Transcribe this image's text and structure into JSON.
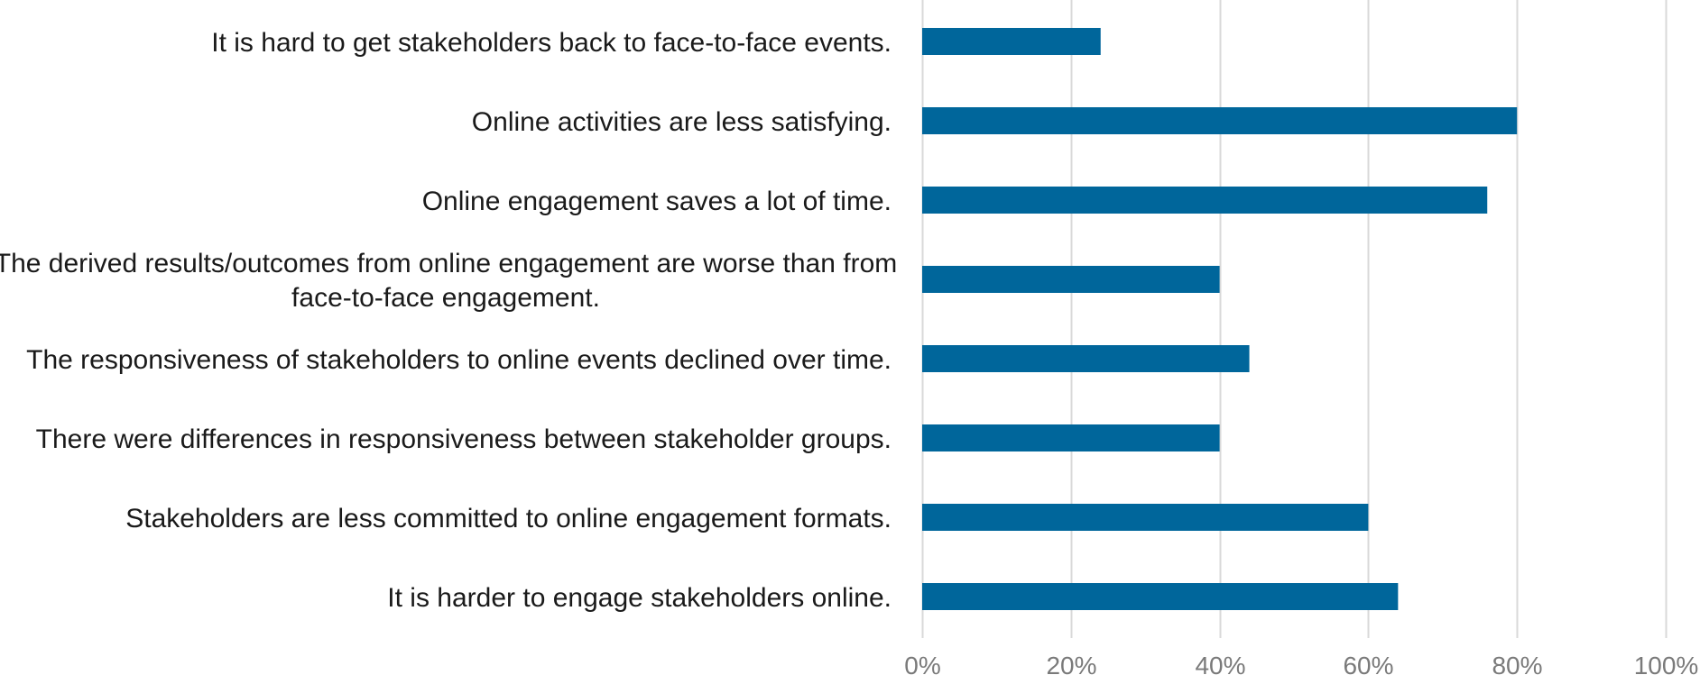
{
  "chart_data": {
    "type": "bar",
    "orientation": "horizontal",
    "categories": [
      "It is hard to get stakeholders back to face-to-face events.",
      "Online activities are less satisfying.",
      "Online engagement saves a lot of time.",
      "The derived results/outcomes from online engagement are worse than from face-to-face engagement.",
      "The responsiveness of stakeholders to online events declined over time.",
      "There were differences in responsiveness between stakeholder groups.",
      "Stakeholders are less committed to online engagement formats.",
      "It is harder to engage stakeholders online."
    ],
    "category_lines": [
      [
        "It is hard to get stakeholders back to face-to-face events."
      ],
      [
        "Online activities are less satisfying."
      ],
      [
        "Online engagement saves a lot of time."
      ],
      [
        "The derived results/outcomes from online engagement are worse than from",
        "face-to-face engagement."
      ],
      [
        "The responsiveness of stakeholders to online events declined over time."
      ],
      [
        "There were differences in responsiveness between stakeholder groups."
      ],
      [
        "Stakeholders are less committed to online engagement formats."
      ],
      [
        "It is harder to engage stakeholders online."
      ]
    ],
    "values": [
      24,
      80,
      76,
      40,
      44,
      40,
      60,
      64
    ],
    "unit": "%",
    "xlim": [
      0,
      100
    ],
    "x_ticks": [
      0,
      20,
      40,
      60,
      80,
      100
    ],
    "x_tick_labels": [
      "0%",
      "20%",
      "40%",
      "60%",
      "80%",
      "100%"
    ],
    "title": "",
    "xlabel": "",
    "ylabel": "",
    "grid": "vertical",
    "legend": "none",
    "colors": {
      "bar": "#00669B",
      "grid": "#D9D9D9",
      "tick_text": "#7A7A7A",
      "label_text": "#1A1A1A"
    }
  }
}
